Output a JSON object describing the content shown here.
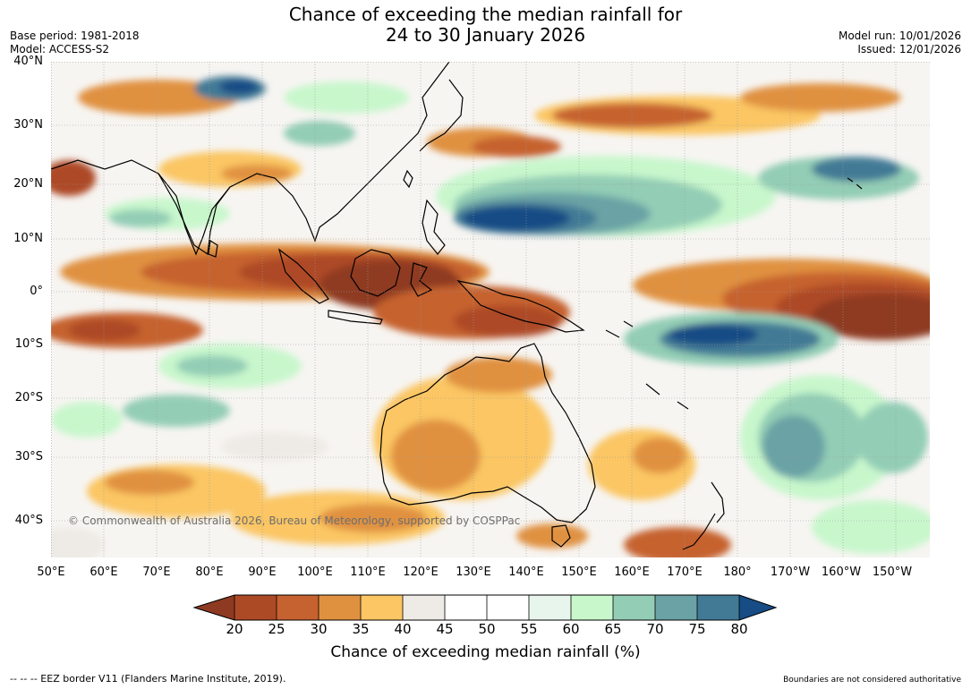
{
  "header": {
    "title_line1": "Chance of exceeding the median rainfall for",
    "title_line2": "24 to 30 January 2026",
    "base_period": "Base period: 1981-2018",
    "model": "Model: ACCESS-S2",
    "model_run": "Model run: 10/01/2026",
    "issued": "Issued: 12/01/2026"
  },
  "map": {
    "lat_labels": [
      "40°N",
      "30°N",
      "20°N",
      "10°N",
      "0°",
      "10°S",
      "20°S",
      "30°S",
      "40°S"
    ],
    "lon_labels": [
      "50°E",
      "60°E",
      "70°E",
      "80°E",
      "90°E",
      "100°E",
      "110°E",
      "120°E",
      "130°E",
      "140°E",
      "150°E",
      "160°E",
      "170°E",
      "180°",
      "170°W",
      "160°W",
      "150°W"
    ],
    "copyright": "© Commonwealth of Australia 2026, Bureau of Meteorology, supported by COSPPac"
  },
  "colorbar": {
    "ticks": [
      "20",
      "25",
      "30",
      "35",
      "40",
      "45",
      "50",
      "55",
      "60",
      "65",
      "70",
      "75",
      "80"
    ],
    "label": "Chance of exceeding median rainfall (%)",
    "colors": {
      "below_20": "#8e3a22",
      "20_25": "#ad4a26",
      "25_30": "#c6622f",
      "30_35": "#e0913f",
      "35_40": "#fbc663",
      "40_45": "#eeebe6",
      "45_50": "#ffffff",
      "50_55": "#ffffff",
      "55_60": "#e8f5ec",
      "60_65": "#c8f7cc",
      "65_70": "#93cdb5",
      "70_75": "#6aa2a5",
      "75_80": "#427a95",
      "above_80": "#174c85"
    }
  },
  "footer": {
    "eez_note": "--  --  -- EEZ border V11 (Flanders Marine Institute, 2019).",
    "boundaries_note": "Boundaries are not considered authoritative"
  }
}
